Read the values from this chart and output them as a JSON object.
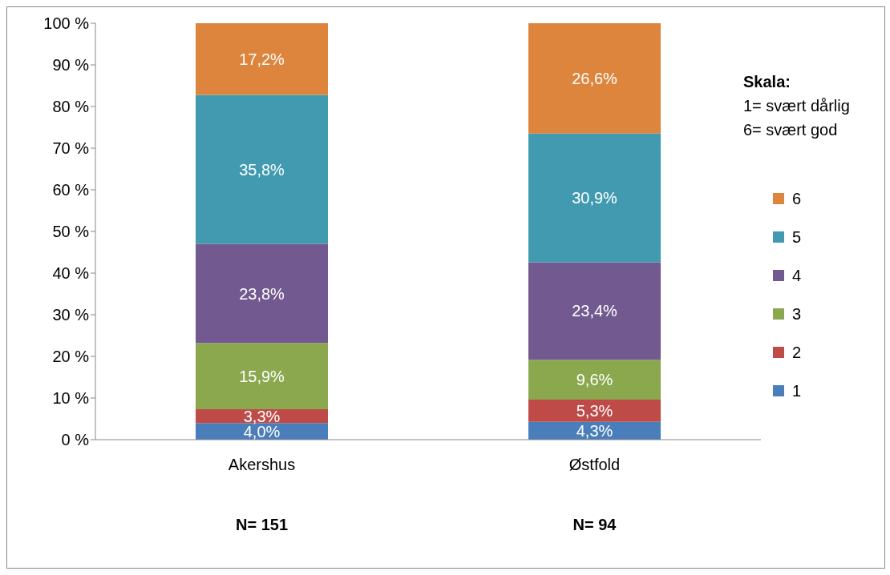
{
  "chart_data": {
    "type": "bar",
    "stacked": true,
    "categories": [
      "Akershus",
      "Østfold"
    ],
    "series": [
      {
        "name": "1",
        "color": "#4a7ebb",
        "values": [
          4.0,
          4.3
        ],
        "value_labels": [
          "4,0%",
          "4,3%"
        ]
      },
      {
        "name": "2",
        "color": "#be4b48",
        "values": [
          3.3,
          5.3
        ],
        "value_labels": [
          "3,3%",
          "5,3%"
        ]
      },
      {
        "name": "3",
        "color": "#8ba84f",
        "values": [
          15.9,
          9.6
        ],
        "value_labels": [
          "15,9%",
          "9,6%"
        ]
      },
      {
        "name": "4",
        "color": "#72598f",
        "values": [
          23.8,
          23.4
        ],
        "value_labels": [
          "23,8%",
          "23,4%"
        ]
      },
      {
        "name": "5",
        "color": "#419ab0",
        "values": [
          35.8,
          30.9
        ],
        "value_labels": [
          "35,8%",
          "30,9%"
        ]
      },
      {
        "name": "6",
        "color": "#dd853d",
        "values": [
          17.2,
          26.6
        ],
        "value_labels": [
          "17,2%",
          "26,6%"
        ]
      }
    ],
    "ylim": [
      0,
      100
    ],
    "yticks": [
      {
        "value": 0,
        "label": "0 %"
      },
      {
        "value": 10,
        "label": "10 %"
      },
      {
        "value": 20,
        "label": "20 %"
      },
      {
        "value": 30,
        "label": "30 %"
      },
      {
        "value": 40,
        "label": "40 %"
      },
      {
        "value": 50,
        "label": "50 %"
      },
      {
        "value": 60,
        "label": "60 %"
      },
      {
        "value": 70,
        "label": "70 %"
      },
      {
        "value": 80,
        "label": "80 %"
      },
      {
        "value": 90,
        "label": "90 %"
      },
      {
        "value": 100,
        "label": "100 %"
      }
    ],
    "grid": false,
    "legend": "right",
    "annotations": [
      "N= 151",
      "N= 94",
      "Skala:",
      "1= svært dårlig",
      "6= svært god"
    ]
  }
}
